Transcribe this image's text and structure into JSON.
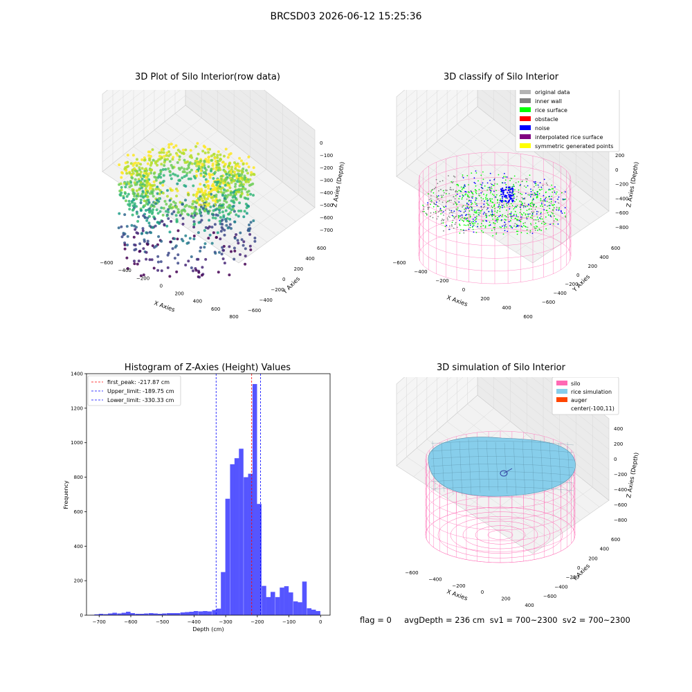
{
  "page": {
    "title": "BRCSD03 2026-06-12 15:25:36",
    "footer": "flag = 0     avgDepth = 236 cm  sv1 = 700~2300  sv2 = 700~2300"
  },
  "colors": {
    "hist_bar": "#4c4cff",
    "peak_line": "#ff0000",
    "limit_line": "#0000ff",
    "silo": "#ff69b4",
    "rice_sim": "#87ceeb",
    "auger": "#ff4500"
  },
  "chart_data": [
    {
      "type": "scatter",
      "title": "3D Plot of Silo Interior(row data)",
      "xlabel": "X Axies",
      "ylabel": "Y Axies",
      "zlabel": "Z Axies (Depth)",
      "x_ticks": [
        "−600",
        "−400",
        "−200",
        "0",
        "200",
        "400",
        "600",
        "800"
      ],
      "y_ticks": [
        "−600",
        "−400",
        "−200",
        "0",
        "200",
        "400",
        "600"
      ],
      "z_ticks": [
        "0",
        "−100",
        "−200",
        "−300",
        "−400",
        "−500",
        "−600",
        "−700"
      ],
      "colormap": "viridis",
      "grid": true
    },
    {
      "type": "scatter",
      "title": "3D classify of Silo Interior",
      "xlabel": "X Axies",
      "ylabel": "Y Axies",
      "zlabel": "Z Axies (Depth)",
      "x_ticks": [
        "−600",
        "−400",
        "−200",
        "0",
        "200",
        "400",
        "600"
      ],
      "y_ticks": [
        "−600",
        "−400",
        "−200",
        "0",
        "200",
        "400",
        "600"
      ],
      "z_ticks": [
        "200",
        "0",
        "−200",
        "−400",
        "−600",
        "−800"
      ],
      "legend": [
        {
          "name": "original data",
          "color": "#b3b3b3"
        },
        {
          "name": "inner wall",
          "color": "#808080"
        },
        {
          "name": "rice surface",
          "color": "#00ff00"
        },
        {
          "name": "obstacle",
          "color": "#ff0000"
        },
        {
          "name": "noise",
          "color": "#0000ff"
        },
        {
          "name": "interpolated rice surface",
          "color": "#800080"
        },
        {
          "name": "symmetric generated points",
          "color": "#ffff00"
        }
      ],
      "legend_position": "top-right",
      "grid": true
    },
    {
      "type": "bar",
      "title": "Histogram of Z-Axies (Height) Values",
      "xlabel": "Depth (cm)",
      "ylabel": "Frequency",
      "xlim": [
        -740,
        30
      ],
      "ylim": [
        0,
        1400
      ],
      "x_ticks": [
        "−700",
        "−600",
        "−500",
        "−400",
        "−300",
        "−200",
        "−100",
        "0"
      ],
      "x_tick_values": [
        -700,
        -600,
        -500,
        -400,
        -300,
        -200,
        -100,
        0
      ],
      "y_ticks": [
        "0",
        "200",
        "400",
        "600",
        "800",
        "1000",
        "1200",
        "1400"
      ],
      "y_tick_values": [
        0,
        200,
        400,
        600,
        800,
        1000,
        1200,
        1400
      ],
      "bin_width": 14.3,
      "bins": [
        {
          "x": -722,
          "v": 2
        },
        {
          "x": -708,
          "v": 5
        },
        {
          "x": -694,
          "v": 8
        },
        {
          "x": -679,
          "v": 6
        },
        {
          "x": -665,
          "v": 10
        },
        {
          "x": -651,
          "v": 14
        },
        {
          "x": -636,
          "v": 10
        },
        {
          "x": -622,
          "v": 14
        },
        {
          "x": -608,
          "v": 20
        },
        {
          "x": -594,
          "v": 12
        },
        {
          "x": -579,
          "v": 8
        },
        {
          "x": -565,
          "v": 8
        },
        {
          "x": -551,
          "v": 10
        },
        {
          "x": -536,
          "v": 12
        },
        {
          "x": -522,
          "v": 10
        },
        {
          "x": -508,
          "v": 8
        },
        {
          "x": -494,
          "v": 10
        },
        {
          "x": -479,
          "v": 12
        },
        {
          "x": -465,
          "v": 12
        },
        {
          "x": -451,
          "v": 12
        },
        {
          "x": -436,
          "v": 16
        },
        {
          "x": -422,
          "v": 18
        },
        {
          "x": -408,
          "v": 20
        },
        {
          "x": -394,
          "v": 24
        },
        {
          "x": -379,
          "v": 22
        },
        {
          "x": -365,
          "v": 24
        },
        {
          "x": -351,
          "v": 22
        },
        {
          "x": -336,
          "v": 30
        },
        {
          "x": -322,
          "v": 38
        },
        {
          "x": -308,
          "v": 250
        },
        {
          "x": -294,
          "v": 675
        },
        {
          "x": -279,
          "v": 875
        },
        {
          "x": -265,
          "v": 910
        },
        {
          "x": -251,
          "v": 965
        },
        {
          "x": -236,
          "v": 800
        },
        {
          "x": -222,
          "v": 820
        },
        {
          "x": -208,
          "v": 1340
        },
        {
          "x": -194,
          "v": 645
        },
        {
          "x": -179,
          "v": 170
        },
        {
          "x": -165,
          "v": 105
        },
        {
          "x": -151,
          "v": 135
        },
        {
          "x": -136,
          "v": 105
        },
        {
          "x": -122,
          "v": 160
        },
        {
          "x": -108,
          "v": 168
        },
        {
          "x": -94,
          "v": 132
        },
        {
          "x": -79,
          "v": 80
        },
        {
          "x": -65,
          "v": 75
        },
        {
          "x": -51,
          "v": 195
        },
        {
          "x": -36,
          "v": 40
        },
        {
          "x": -22,
          "v": 32
        },
        {
          "x": -8,
          "v": 24
        }
      ],
      "vlines": [
        {
          "name": "first_peak: -217.87 cm",
          "x": -217.87,
          "color": "#ff0000",
          "style": "dashed"
        },
        {
          "name": "Upper_limit: -189.75 cm",
          "x": -189.75,
          "color": "#0000ff",
          "style": "dashed"
        },
        {
          "name": "Lower_limit: -330.33 cm",
          "x": -330.33,
          "color": "#0000ff",
          "style": "dashed"
        }
      ],
      "legend_position": "top-left"
    },
    {
      "type": "surface",
      "title": "3D simulation of Silo Interior",
      "xlabel": "X Axies",
      "ylabel": "Y Axies",
      "zlabel": "Z Axies (Depth)",
      "x_ticks": [
        "−600",
        "−400",
        "−200",
        "0",
        "200",
        "400"
      ],
      "y_ticks": [
        "−600",
        "−400",
        "−200",
        "0",
        "200",
        "400",
        "600"
      ],
      "z_ticks": [
        "400",
        "200",
        "0",
        "−200",
        "−400",
        "−600",
        "−800"
      ],
      "legend": [
        {
          "name": "silo",
          "color": "#ff69b4"
        },
        {
          "name": "rice simulation",
          "color": "#87ceeb"
        },
        {
          "name": "auger",
          "color": "#ff4500"
        },
        {
          "name": "center(-100,11)",
          "color": ""
        }
      ],
      "legend_position": "top-right",
      "grid": true
    }
  ]
}
